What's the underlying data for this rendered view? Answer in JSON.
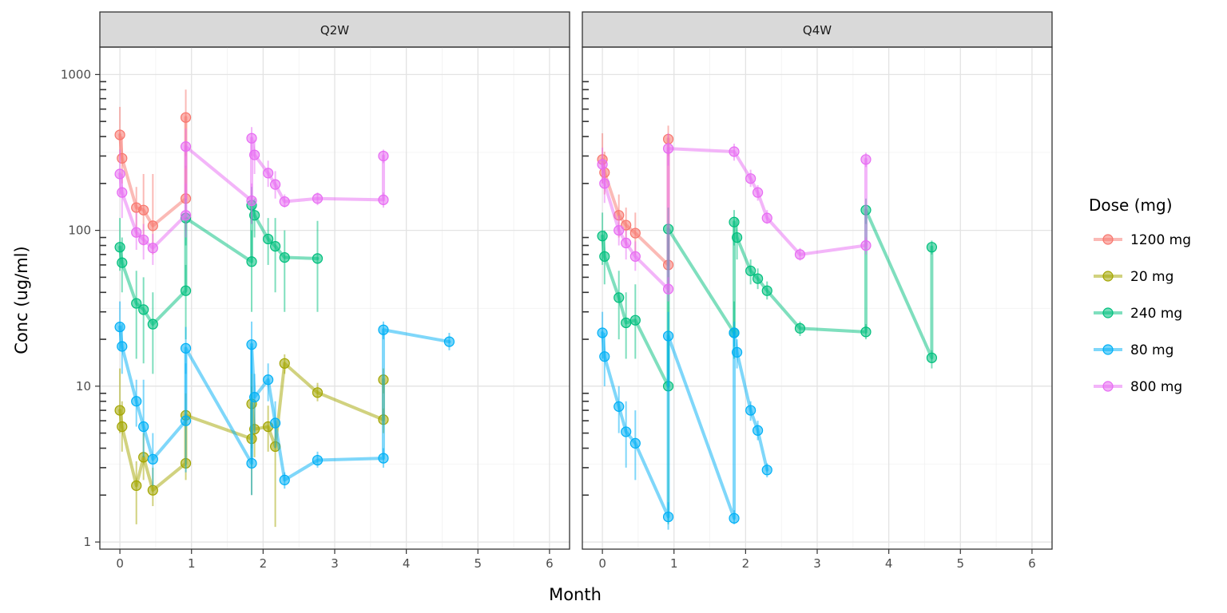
{
  "chart_data": {
    "type": "line",
    "xlabel": "Month",
    "ylabel": "Conc (ug/ml)",
    "y_scale": "log10",
    "ylim": [
      0.9,
      1500
    ],
    "xlim": [
      -0.28,
      6.28
    ],
    "x_ticks": [
      0,
      1,
      2,
      3,
      4,
      5,
      6
    ],
    "y_ticks": [
      1,
      10,
      100,
      1000
    ],
    "grid": true,
    "legend_title": "Dose (mg)",
    "legend_position": "right",
    "legend": [
      {
        "label": "1200 mg",
        "color": "#F8766D"
      },
      {
        "label": "20 mg",
        "color": "#A3A500"
      },
      {
        "label": "240 mg",
        "color": "#00BF7D"
      },
      {
        "label": "80 mg",
        "color": "#00B0F6"
      },
      {
        "label": "800 mg",
        "color": "#E76BF3"
      }
    ],
    "panels": [
      {
        "label": "Q2W",
        "series": [
          {
            "name": "1200 mg",
            "color": "#F8766D",
            "points": [
              {
                "x": 0.0,
                "y": 410,
                "lo": 300,
                "hi": 620
              },
              {
                "x": 0.03,
                "y": 290,
                "lo": 200,
                "hi": 400
              },
              {
                "x": 0.23,
                "y": 140,
                "lo": 90,
                "hi": 190
              },
              {
                "x": 0.33,
                "y": 135,
                "lo": 80,
                "hi": 230
              },
              {
                "x": 0.46,
                "y": 107,
                "lo": 70,
                "hi": 230
              },
              {
                "x": 0.92,
                "y": 160,
                "lo": 100,
                "hi": 260
              },
              {
                "x": 0.92,
                "y": 530,
                "lo": 300,
                "hi": 800
              }
            ]
          },
          {
            "name": "20 mg",
            "color": "#A3A500",
            "points": [
              {
                "x": 0.0,
                "y": 7.0,
                "lo": 5,
                "hi": 13
              },
              {
                "x": 0.03,
                "y": 5.5,
                "lo": 3.8,
                "hi": 8
              },
              {
                "x": 0.23,
                "y": 2.3,
                "lo": 1.3,
                "hi": 3.3
              },
              {
                "x": 0.33,
                "y": 3.5,
                "lo": 2.5,
                "hi": 5
              },
              {
                "x": 0.46,
                "y": 2.15,
                "lo": 1.7,
                "hi": 3
              },
              {
                "x": 0.92,
                "y": 3.2,
                "lo": 2.5,
                "hi": 4.5
              },
              {
                "x": 0.92,
                "y": 6.5,
                "lo": 4.5,
                "hi": 9
              },
              {
                "x": 1.84,
                "y": 4.6,
                "lo": 2,
                "hi": 10
              },
              {
                "x": 1.84,
                "y": 7.7,
                "lo": 4,
                "hi": 12
              },
              {
                "x": 1.88,
                "y": 5.3,
                "lo": 3.5,
                "hi": 8
              },
              {
                "x": 2.07,
                "y": 5.5,
                "lo": 3.8,
                "hi": 7.5
              },
              {
                "x": 2.17,
                "y": 4.1,
                "lo": 1.25,
                "hi": 6
              },
              {
                "x": 2.3,
                "y": 14.0,
                "lo": 12,
                "hi": 16
              },
              {
                "x": 2.76,
                "y": 9.1,
                "lo": 8,
                "hi": 10.5
              },
              {
                "x": 3.68,
                "y": 6.1,
                "lo": 5,
                "hi": 7.2
              },
              {
                "x": 3.68,
                "y": 11.0,
                "lo": 9,
                "hi": 13
              }
            ]
          },
          {
            "name": "240 mg",
            "color": "#00BF7D",
            "points": [
              {
                "x": 0.0,
                "y": 78,
                "lo": 55,
                "hi": 120
              },
              {
                "x": 0.03,
                "y": 62,
                "lo": 40,
                "hi": 90
              },
              {
                "x": 0.23,
                "y": 34,
                "lo": 15,
                "hi": 55
              },
              {
                "x": 0.33,
                "y": 31,
                "lo": 14,
                "hi": 50
              },
              {
                "x": 0.46,
                "y": 25,
                "lo": 12,
                "hi": 40
              },
              {
                "x": 0.92,
                "y": 41,
                "lo": 20,
                "hi": 60
              },
              {
                "x": 0.92,
                "y": 120,
                "lo": 80,
                "hi": 160
              },
              {
                "x": 1.84,
                "y": 63,
                "lo": 30,
                "hi": 100
              },
              {
                "x": 1.84,
                "y": 145,
                "lo": 110,
                "hi": 190
              },
              {
                "x": 1.88,
                "y": 125,
                "lo": 90,
                "hi": 160
              },
              {
                "x": 2.07,
                "y": 88,
                "lo": 60,
                "hi": 120
              },
              {
                "x": 2.17,
                "y": 79,
                "lo": 40,
                "hi": 120
              },
              {
                "x": 2.3,
                "y": 67,
                "lo": 30,
                "hi": 100
              },
              {
                "x": 2.76,
                "y": 66,
                "lo": 30,
                "hi": 115
              }
            ]
          },
          {
            "name": "80 mg",
            "color": "#00B0F6",
            "points": [
              {
                "x": 0.0,
                "y": 24,
                "lo": 17,
                "hi": 35
              },
              {
                "x": 0.03,
                "y": 18,
                "lo": 12,
                "hi": 25
              },
              {
                "x": 0.23,
                "y": 8.0,
                "lo": 5.5,
                "hi": 11
              },
              {
                "x": 0.33,
                "y": 5.5,
                "lo": 3.5,
                "hi": 11
              },
              {
                "x": 0.46,
                "y": 3.4,
                "lo": 2.3,
                "hi": 5
              },
              {
                "x": 0.92,
                "y": 6.0,
                "lo": 2.8,
                "hi": 14
              },
              {
                "x": 0.92,
                "y": 17.5,
                "lo": 12,
                "hi": 24
              },
              {
                "x": 1.84,
                "y": 3.2,
                "lo": 2,
                "hi": 18
              },
              {
                "x": 1.84,
                "y": 18.5,
                "lo": 12,
                "hi": 26
              },
              {
                "x": 1.88,
                "y": 8.5,
                "lo": 5,
                "hi": 12
              },
              {
                "x": 2.07,
                "y": 11,
                "lo": 8,
                "hi": 14
              },
              {
                "x": 2.17,
                "y": 5.8,
                "lo": 4,
                "hi": 8
              },
              {
                "x": 2.3,
                "y": 2.5,
                "lo": 2.2,
                "hi": 2.8
              },
              {
                "x": 2.76,
                "y": 3.35,
                "lo": 3,
                "hi": 3.8
              },
              {
                "x": 3.68,
                "y": 3.45,
                "lo": 3,
                "hi": 4
              },
              {
                "x": 3.68,
                "y": 23,
                "lo": 20,
                "hi": 26
              },
              {
                "x": 4.6,
                "y": 19.3,
                "lo": 17,
                "hi": 22
              }
            ]
          },
          {
            "name": "800 mg",
            "color": "#E76BF3",
            "points": [
              {
                "x": 0.0,
                "y": 230,
                "lo": 170,
                "hi": 330
              },
              {
                "x": 0.03,
                "y": 175,
                "lo": 120,
                "hi": 230
              },
              {
                "x": 0.23,
                "y": 97,
                "lo": 75,
                "hi": 130
              },
              {
                "x": 0.33,
                "y": 87,
                "lo": 65,
                "hi": 110
              },
              {
                "x": 0.46,
                "y": 77,
                "lo": 60,
                "hi": 95
              },
              {
                "x": 0.92,
                "y": 125,
                "lo": 90,
                "hi": 200
              },
              {
                "x": 0.92,
                "y": 345,
                "lo": 250,
                "hi": 450
              },
              {
                "x": 1.84,
                "y": 155,
                "lo": 110,
                "hi": 200
              },
              {
                "x": 1.84,
                "y": 390,
                "lo": 300,
                "hi": 460
              },
              {
                "x": 1.88,
                "y": 305,
                "lo": 230,
                "hi": 380
              },
              {
                "x": 2.07,
                "y": 233,
                "lo": 190,
                "hi": 280
              },
              {
                "x": 2.17,
                "y": 197,
                "lo": 160,
                "hi": 240
              },
              {
                "x": 2.3,
                "y": 153,
                "lo": 140,
                "hi": 170
              },
              {
                "x": 2.76,
                "y": 160,
                "lo": 145,
                "hi": 175
              },
              {
                "x": 3.68,
                "y": 157,
                "lo": 140,
                "hi": 175
              },
              {
                "x": 3.68,
                "y": 300,
                "lo": 270,
                "hi": 330
              }
            ]
          }
        ]
      },
      {
        "label": "Q4W",
        "series": [
          {
            "name": "1200 mg",
            "color": "#F8766D",
            "points": [
              {
                "x": 0.0,
                "y": 285,
                "lo": 200,
                "hi": 420
              },
              {
                "x": 0.03,
                "y": 235,
                "lo": 170,
                "hi": 320
              },
              {
                "x": 0.23,
                "y": 125,
                "lo": 90,
                "hi": 170
              },
              {
                "x": 0.33,
                "y": 108,
                "lo": 80,
                "hi": 140
              },
              {
                "x": 0.46,
                "y": 96,
                "lo": 70,
                "hi": 130
              },
              {
                "x": 0.92,
                "y": 60,
                "lo": 40,
                "hi": 90
              },
              {
                "x": 0.92,
                "y": 385,
                "lo": 300,
                "hi": 470
              }
            ]
          },
          {
            "name": "240 mg",
            "color": "#00BF7D",
            "points": [
              {
                "x": 0.0,
                "y": 92,
                "lo": 60,
                "hi": 130
              },
              {
                "x": 0.03,
                "y": 68,
                "lo": 45,
                "hi": 100
              },
              {
                "x": 0.23,
                "y": 37,
                "lo": 20,
                "hi": 55
              },
              {
                "x": 0.33,
                "y": 25.5,
                "lo": 15,
                "hi": 40
              },
              {
                "x": 0.46,
                "y": 26.5,
                "lo": 15,
                "hi": 45
              },
              {
                "x": 0.92,
                "y": 10,
                "lo": 1.3,
                "hi": 70
              },
              {
                "x": 0.92,
                "y": 102,
                "lo": 70,
                "hi": 140
              },
              {
                "x": 1.84,
                "y": 22,
                "lo": 15,
                "hi": 35
              },
              {
                "x": 1.84,
                "y": 113,
                "lo": 80,
                "hi": 135
              },
              {
                "x": 1.88,
                "y": 90,
                "lo": 65,
                "hi": 120
              },
              {
                "x": 2.07,
                "y": 55,
                "lo": 45,
                "hi": 65
              },
              {
                "x": 2.17,
                "y": 49,
                "lo": 42,
                "hi": 57
              },
              {
                "x": 2.3,
                "y": 41,
                "lo": 36,
                "hi": 47
              },
              {
                "x": 2.76,
                "y": 23.5,
                "lo": 21,
                "hi": 26
              },
              {
                "x": 3.68,
                "y": 22.3,
                "lo": 20,
                "hi": 25
              },
              {
                "x": 3.68,
                "y": 135,
                "lo": 110,
                "hi": 160
              },
              {
                "x": 4.6,
                "y": 15.2,
                "lo": 13,
                "hi": 17
              },
              {
                "x": 4.6,
                "y": 78,
                "lo": 70,
                "hi": 86
              }
            ]
          },
          {
            "name": "80 mg",
            "color": "#00B0F6",
            "points": [
              {
                "x": 0.0,
                "y": 22,
                "lo": 15,
                "hi": 30
              },
              {
                "x": 0.03,
                "y": 15.5,
                "lo": 10,
                "hi": 22
              },
              {
                "x": 0.23,
                "y": 7.4,
                "lo": 5,
                "hi": 10
              },
              {
                "x": 0.33,
                "y": 5.1,
                "lo": 3,
                "hi": 8
              },
              {
                "x": 0.46,
                "y": 4.3,
                "lo": 2.5,
                "hi": 7
              },
              {
                "x": 0.92,
                "y": 1.45,
                "lo": 1.2,
                "hi": 1.8
              },
              {
                "x": 0.92,
                "y": 21,
                "lo": 10,
                "hi": 30
              },
              {
                "x": 1.84,
                "y": 1.42,
                "lo": 1.3,
                "hi": 1.6
              },
              {
                "x": 1.84,
                "y": 22,
                "lo": 18,
                "hi": 26
              },
              {
                "x": 1.88,
                "y": 16.5,
                "lo": 13,
                "hi": 20
              },
              {
                "x": 2.07,
                "y": 7.0,
                "lo": 6,
                "hi": 8
              },
              {
                "x": 2.17,
                "y": 5.2,
                "lo": 4.5,
                "hi": 6
              },
              {
                "x": 2.3,
                "y": 2.9,
                "lo": 2.6,
                "hi": 3.2
              }
            ]
          },
          {
            "name": "800 mg",
            "color": "#E76BF3",
            "points": [
              {
                "x": 0.0,
                "y": 265,
                "lo": 200,
                "hi": 340
              },
              {
                "x": 0.03,
                "y": 200,
                "lo": 150,
                "hi": 260
              },
              {
                "x": 0.23,
                "y": 100,
                "lo": 80,
                "hi": 125
              },
              {
                "x": 0.33,
                "y": 83,
                "lo": 65,
                "hi": 100
              },
              {
                "x": 0.46,
                "y": 68,
                "lo": 55,
                "hi": 85
              },
              {
                "x": 0.92,
                "y": 42,
                "lo": 35,
                "hi": 50
              },
              {
                "x": 0.92,
                "y": 335,
                "lo": 260,
                "hi": 420
              },
              {
                "x": 1.84,
                "y": 320,
                "lo": 280,
                "hi": 360
              },
              {
                "x": 2.07,
                "y": 215,
                "lo": 190,
                "hi": 245
              },
              {
                "x": 2.17,
                "y": 175,
                "lo": 155,
                "hi": 195
              },
              {
                "x": 2.3,
                "y": 120,
                "lo": 110,
                "hi": 135
              },
              {
                "x": 2.76,
                "y": 70,
                "lo": 64,
                "hi": 77
              },
              {
                "x": 3.68,
                "y": 80,
                "lo": 70,
                "hi": 90
              },
              {
                "x": 3.68,
                "y": 285,
                "lo": 255,
                "hi": 315
              }
            ]
          }
        ]
      }
    ]
  }
}
